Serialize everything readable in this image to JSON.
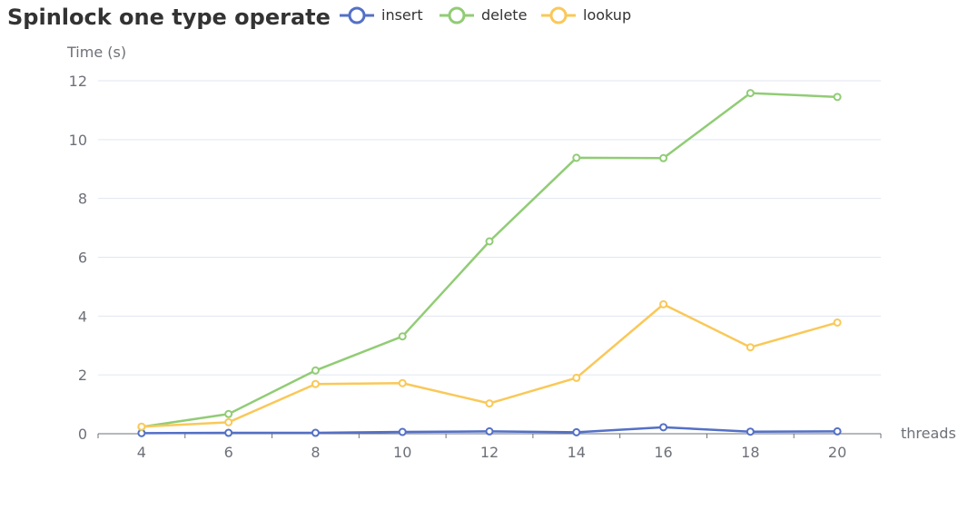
{
  "chart_data": {
    "type": "line",
    "title": "Spinlock one type operate",
    "xlabel": "threads",
    "ylabel": "Time (s)",
    "categories": [
      "4",
      "6",
      "8",
      "10",
      "12",
      "14",
      "16",
      "18",
      "20"
    ],
    "ylim": [
      0,
      12
    ],
    "yticks": [
      0,
      2,
      4,
      6,
      8,
      10,
      12
    ],
    "grid": true,
    "legend_position": "top",
    "series": [
      {
        "name": "insert",
        "color": "#5470c6",
        "values": [
          0.02,
          0.03,
          0.03,
          0.06,
          0.08,
          0.05,
          0.22,
          0.07,
          0.08
        ]
      },
      {
        "name": "delete",
        "color": "#91cc75",
        "values": [
          0.23,
          0.67,
          2.15,
          3.31,
          6.54,
          9.38,
          9.37,
          11.58,
          11.45
        ]
      },
      {
        "name": "lookup",
        "color": "#fac858",
        "values": [
          0.24,
          0.39,
          1.69,
          1.72,
          1.03,
          1.9,
          4.4,
          2.94,
          3.78
        ]
      }
    ]
  }
}
